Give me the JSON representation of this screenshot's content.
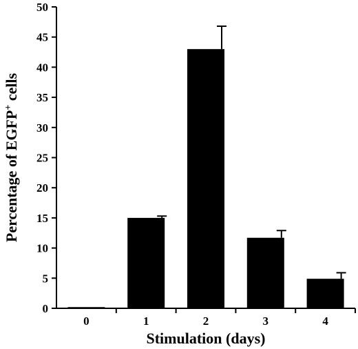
{
  "chart_data": {
    "type": "bar",
    "categories": [
      "0",
      "1",
      "2",
      "3",
      "4"
    ],
    "values": [
      0.2,
      15.0,
      43.0,
      11.7,
      4.9
    ],
    "errors": [
      0,
      0.3,
      3.8,
      1.2,
      1.0
    ],
    "xlabel": "Stimulation (days)",
    "ylabel": {
      "main": "Percentage of EGFP",
      "superscript": "+",
      "suffix": " cells"
    },
    "ylim": [
      0,
      50
    ],
    "yticks": [
      0,
      5,
      10,
      15,
      20,
      25,
      30,
      35,
      40,
      45,
      50
    ],
    "grid": false,
    "bar_color": "#000000",
    "background": "#ffffff"
  }
}
